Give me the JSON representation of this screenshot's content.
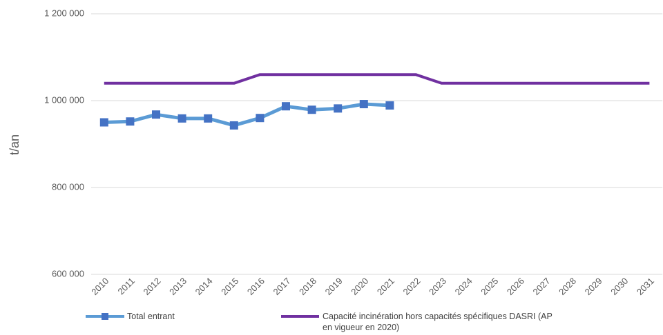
{
  "chart_data": {
    "type": "line",
    "y_label": "t/an",
    "categories": [
      "2010",
      "2011",
      "2012",
      "2013",
      "2014",
      "2015",
      "2016",
      "2017",
      "2018",
      "2019",
      "2020",
      "2021",
      "2022",
      "2023",
      "2024",
      "2025",
      "2026",
      "2027",
      "2028",
      "2029",
      "2030",
      "2031"
    ],
    "series": [
      {
        "name": "Total entrant",
        "color": "#5b9bd5",
        "marker_color": "#4472c4",
        "values": [
          950000,
          952000,
          968000,
          959000,
          959000,
          943000,
          960000,
          987000,
          979000,
          982000,
          992000,
          989000,
          null,
          null,
          null,
          null,
          null,
          null,
          null,
          null,
          null,
          null
        ]
      },
      {
        "name": "Capacité incinération hors capacités spécifiques DASRI (AP en vigueur en 2020)",
        "color": "#7030a0",
        "values": [
          1040000,
          1040000,
          1040000,
          1040000,
          1040000,
          1040000,
          1060000,
          1060000,
          1060000,
          1060000,
          1060000,
          1060000,
          1060000,
          1040000,
          1040000,
          1040000,
          1040000,
          1040000,
          1040000,
          1040000,
          1040000,
          1040000
        ]
      }
    ],
    "ylim": [
      600000,
      1200000
    ],
    "yticks": [
      {
        "value": 600000,
        "label": "600 000"
      },
      {
        "value": 800000,
        "label": "800 000"
      },
      {
        "value": 1000000,
        "label": "1 000 000"
      },
      {
        "value": 1200000,
        "label": "1 200 000"
      }
    ],
    "grid": true
  }
}
